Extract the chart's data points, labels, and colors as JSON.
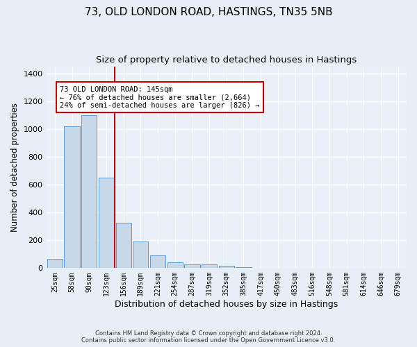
{
  "title1": "73, OLD LONDON ROAD, HASTINGS, TN35 5NB",
  "title2": "Size of property relative to detached houses in Hastings",
  "xlabel": "Distribution of detached houses by size in Hastings",
  "ylabel": "Number of detached properties",
  "footer1": "Contains HM Land Registry data © Crown copyright and database right 2024.",
  "footer2": "Contains public sector information licensed under the Open Government Licence v3.0.",
  "bar_labels": [
    "25sqm",
    "58sqm",
    "90sqm",
    "123sqm",
    "156sqm",
    "189sqm",
    "221sqm",
    "254sqm",
    "287sqm",
    "319sqm",
    "352sqm",
    "385sqm",
    "417sqm",
    "450sqm",
    "483sqm",
    "516sqm",
    "548sqm",
    "581sqm",
    "614sqm",
    "646sqm",
    "679sqm"
  ],
  "bar_values": [
    65,
    1020,
    1100,
    650,
    325,
    190,
    90,
    40,
    25,
    25,
    15,
    5,
    2,
    0,
    0,
    0,
    0,
    0,
    0,
    0,
    0
  ],
  "bar_color": "#c8d8e8",
  "bar_edgecolor": "#5b9bd5",
  "vline_color": "#cc0000",
  "annotation_text": "73 OLD LONDON ROAD: 145sqm\n← 76% of detached houses are smaller (2,664)\n24% of semi-detached houses are larger (826) →",
  "annotation_box_color": "#ffffff",
  "annotation_box_edgecolor": "#cc0000",
  "ylim": [
    0,
    1450
  ],
  "yticks": [
    0,
    200,
    400,
    600,
    800,
    1000,
    1200,
    1400
  ],
  "bg_color": "#e8eef5",
  "plot_bg_color": "#eaf0f8",
  "grid_color": "#ffffff",
  "title1_fontsize": 11,
  "title2_fontsize": 9.5,
  "xlabel_fontsize": 9,
  "ylabel_fontsize": 8.5
}
